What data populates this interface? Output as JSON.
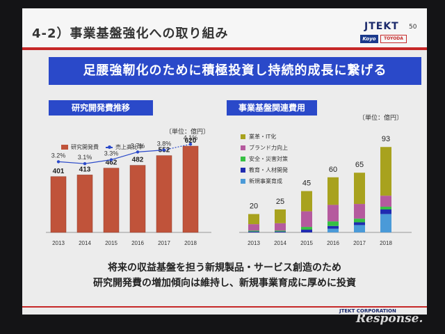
{
  "slide": {
    "title": "4-2）事業基盤強化への取り組み",
    "page_number": "50",
    "logo_main": "JTEKT",
    "logo_sub1": "Koyo",
    "logo_sub2": "TOYODA",
    "banner": "足腰強靭化のために積極投資し持続的成長に繋げる",
    "footer_line1": "将来の収益基盤を担う新規製品・サービス創造のため",
    "footer_line2": "研究開発費の増加傾向は維持し、新規事業育成に厚めに投資",
    "footer_corp": "JTEKT CORPORATION",
    "watermark": "Response."
  },
  "colors": {
    "accent_blue": "#2a49c9",
    "accent_red": "#c62828",
    "bar_red": "#c0533a"
  },
  "chart_data": [
    {
      "type": "bar",
      "title": "研究開発費推移",
      "unit": "〔単位：億円〕",
      "categories": [
        "2013",
        "2014",
        "2015",
        "2016",
        "2017",
        "2018"
      ],
      "series": [
        {
          "name": "研究開発費",
          "values": [
            401,
            413,
            462,
            482,
            552,
            620
          ],
          "value_labels": [
            "401",
            "413",
            "462",
            "482",
            "552",
            "620"
          ],
          "color": "#c0533a"
        },
        {
          "name": "売上高比率",
          "type": "line",
          "values": [
            3.2,
            3.1,
            3.3,
            3.7,
            3.8,
            4.1
          ],
          "value_labels": [
            "3.2%",
            "3.1%",
            "3.3%",
            "3.7%",
            "3.8%",
            "4.1%"
          ],
          "color": "#2a49c9"
        }
      ]
    },
    {
      "type": "bar",
      "stacked": true,
      "title": "事業基盤関連費用",
      "unit": "〔単位：億円〕",
      "categories": [
        "2013",
        "2014",
        "2015",
        "2016",
        "2017",
        "2018"
      ],
      "totals": [
        20,
        25,
        45,
        60,
        65,
        93
      ],
      "series": [
        {
          "name": "新規事業育成",
          "values": [
            0,
            0,
            0,
            4,
            8,
            20
          ],
          "color": "#4a9ad8"
        },
        {
          "name": "教育・人材開発",
          "values": [
            1,
            1,
            3,
            3,
            3,
            5
          ],
          "color": "#1f2bb0"
        },
        {
          "name": "安全・災害対策",
          "values": [
            1,
            1,
            3,
            5,
            4,
            3
          ],
          "color": "#36c043"
        },
        {
          "name": "ブランド力向上",
          "values": [
            7,
            8,
            17,
            18,
            16,
            12
          ],
          "color": "#b55a9e"
        },
        {
          "name": "業革・IT化",
          "values": [
            11,
            15,
            22,
            30,
            34,
            53
          ],
          "color": "#a8a21e"
        }
      ]
    }
  ]
}
